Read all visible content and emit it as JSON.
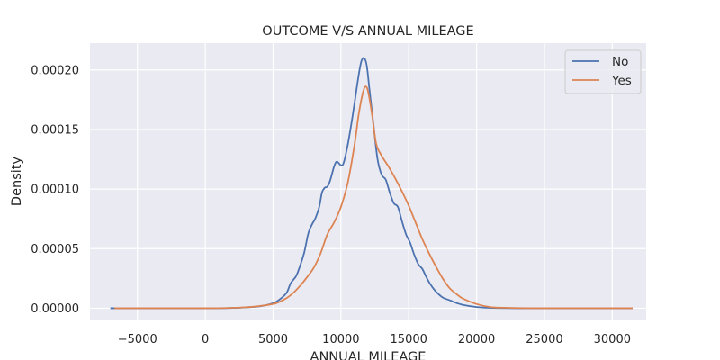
{
  "chart_data": {
    "type": "line",
    "title": "OUTCOME V/S ANNUAL MILEAGE",
    "xlabel": "ANNUAL MILEAGE",
    "ylabel": "Density",
    "xlim": [
      -8500,
      32500
    ],
    "ylim": [
      -9.5e-06,
      0.0002225
    ],
    "x_ticks": [
      -5000,
      0,
      5000,
      10000,
      15000,
      20000,
      25000,
      30000
    ],
    "y_ticks": [
      0.0,
      5e-05,
      0.0001,
      0.00015,
      0.0002
    ],
    "y_tick_labels": [
      "0.00000",
      "0.00005",
      "0.00010",
      "0.00015",
      "0.00020"
    ],
    "grid": true,
    "legend": {
      "placement": "top-right",
      "entries": [
        "No",
        "Yes"
      ]
    },
    "series": [
      {
        "name": "No",
        "color": "#4c72b0",
        "points": [
          [
            -7000,
            0.0
          ],
          [
            0,
            0.0
          ],
          [
            2000,
            2e-07
          ],
          [
            3000,
            7e-07
          ],
          [
            4000,
            1.6e-06
          ],
          [
            5000,
            4.2e-06
          ],
          [
            5500,
            7.5e-06
          ],
          [
            6000,
            1.3e-05
          ],
          [
            6300,
            2.1e-05
          ],
          [
            6700,
            2.7e-05
          ],
          [
            7000,
            3.6e-05
          ],
          [
            7300,
            4.7e-05
          ],
          [
            7600,
            6.3e-05
          ],
          [
            7900,
            7.1e-05
          ],
          [
            8100,
            7.5e-05
          ],
          [
            8400,
            8.5e-05
          ],
          [
            8600,
            9.7e-05
          ],
          [
            8800,
            0.000101
          ],
          [
            9000,
            0.000102
          ],
          [
            9200,
            0.000107
          ],
          [
            9500,
            0.000119
          ],
          [
            9700,
            0.000123
          ],
          [
            10000,
            0.00012
          ],
          [
            10200,
            0.000122
          ],
          [
            10500,
            0.000137
          ],
          [
            10800,
            0.000157
          ],
          [
            11000,
            0.000172
          ],
          [
            11300,
            0.000195
          ],
          [
            11500,
            0.000207
          ],
          [
            11700,
            0.00021
          ],
          [
            11900,
            0.000204
          ],
          [
            12100,
            0.000184
          ],
          [
            12400,
            0.000154
          ],
          [
            12700,
            0.000125
          ],
          [
            13000,
            0.000112
          ],
          [
            13300,
            0.000108
          ],
          [
            13600,
            9.7e-05
          ],
          [
            13900,
            8.8e-05
          ],
          [
            14200,
            8.5e-05
          ],
          [
            14500,
            7.3e-05
          ],
          [
            14800,
            6.2e-05
          ],
          [
            15100,
            5.5e-05
          ],
          [
            15400,
            4.5e-05
          ],
          [
            15700,
            3.7e-05
          ],
          [
            16000,
            3.3e-05
          ],
          [
            16300,
            2.6e-05
          ],
          [
            16600,
            2e-05
          ],
          [
            17000,
            1.4e-05
          ],
          [
            17500,
            9e-06
          ],
          [
            18000,
            6.8e-06
          ],
          [
            18500,
            4.5e-06
          ],
          [
            19000,
            2.8e-06
          ],
          [
            20000,
            1e-06
          ],
          [
            21000,
            3e-07
          ],
          [
            23000,
            0.0
          ],
          [
            27000,
            0.0
          ],
          [
            31500,
            0.0
          ]
        ]
      },
      {
        "name": "Yes",
        "color": "#dd8452",
        "points": [
          [
            -6700,
            0.0
          ],
          [
            0,
            0.0
          ],
          [
            2000,
            3e-07
          ],
          [
            3000,
            8e-07
          ],
          [
            4000,
            1.8e-06
          ],
          [
            5000,
            3.5e-06
          ],
          [
            5500,
            5.5e-06
          ],
          [
            6000,
            8.5e-06
          ],
          [
            6500,
            1.3e-05
          ],
          [
            7000,
            1.9e-05
          ],
          [
            7500,
            2.6e-05
          ],
          [
            8000,
            3.4e-05
          ],
          [
            8500,
            4.6e-05
          ],
          [
            9000,
            6.2e-05
          ],
          [
            9500,
            7.2e-05
          ],
          [
            10000,
            8.5e-05
          ],
          [
            10500,
            0.000105
          ],
          [
            11000,
            0.000137
          ],
          [
            11300,
            0.000162
          ],
          [
            11600,
            0.00018
          ],
          [
            11800,
            0.000186
          ],
          [
            12000,
            0.000182
          ],
          [
            12300,
            0.000162
          ],
          [
            12600,
            0.000138
          ],
          [
            13000,
            0.000128
          ],
          [
            13500,
            0.000119
          ],
          [
            14000,
            0.000109
          ],
          [
            14500,
            9.8e-05
          ],
          [
            15000,
            8.6e-05
          ],
          [
            15500,
            7.2e-05
          ],
          [
            16000,
            5.8e-05
          ],
          [
            16500,
            4.6e-05
          ],
          [
            17000,
            3.5e-05
          ],
          [
            17500,
            2.5e-05
          ],
          [
            18000,
            1.7e-05
          ],
          [
            18500,
            1.2e-05
          ],
          [
            19000,
            8e-06
          ],
          [
            20000,
            3.5e-06
          ],
          [
            21000,
            1e-06
          ],
          [
            22000,
            4e-07
          ],
          [
            24000,
            0.0
          ],
          [
            28000,
            0.0
          ],
          [
            31500,
            0.0
          ]
        ]
      }
    ]
  }
}
